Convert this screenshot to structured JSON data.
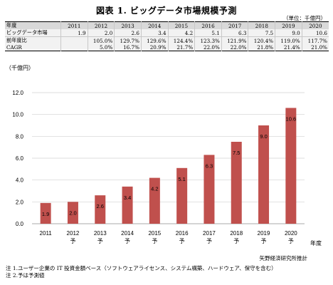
{
  "title": "図表 1. ビッグデータ市場規模予測",
  "unit": "（単位：千億円）",
  "table": {
    "header": [
      "年度",
      "2011",
      "2012",
      "2013",
      "2014",
      "2015",
      "2016",
      "2017",
      "2018",
      "2019",
      "2020"
    ],
    "rows": [
      {
        "label": "ビッグデータ市場",
        "values": [
          "1.9",
          "2.0",
          "2.6",
          "3.4",
          "4.2",
          "5.1",
          "6.3",
          "7.5",
          "9.0",
          "10.6"
        ]
      },
      {
        "label": "前年度比",
        "values": [
          "",
          "105.0%",
          "129.7%",
          "129.6%",
          "124.4%",
          "123.3%",
          "121.9%",
          "120.4%",
          "119.0%",
          "117.7%"
        ]
      },
      {
        "label": "CAGR",
        "values": [
          "",
          "5.0%",
          "16.7%",
          "20.9%",
          "21.7%",
          "22.0%",
          "22.0%",
          "21.8%",
          "21.4%",
          "21.0%"
        ]
      }
    ]
  },
  "chart_data": {
    "type": "bar",
    "categories": [
      "2011",
      "2012",
      "2013",
      "2014",
      "2015",
      "2016",
      "2017",
      "2018",
      "2019",
      "2020"
    ],
    "category_sublabels": [
      "",
      "予",
      "予",
      "予",
      "予",
      "予",
      "予",
      "予",
      "予",
      "予"
    ],
    "values": [
      1.9,
      2.0,
      2.6,
      3.4,
      4.2,
      5.1,
      6.3,
      7.5,
      9.0,
      10.6
    ],
    "data_labels": [
      "1.9",
      "2.0",
      "2.6",
      "3.4",
      "4.2",
      "5.1",
      "6.3",
      "7.5",
      "9.0",
      "10.6"
    ],
    "ylabel": "（千億円）",
    "xlabel": "年度",
    "ylim": [
      0,
      12
    ],
    "yticks": [
      "0.0",
      "2.0",
      "4.0",
      "6.0",
      "8.0",
      "10.0",
      "12.0"
    ],
    "grid": true,
    "bar_color": "#c0504d"
  },
  "source": "矢野経済研究所推計",
  "notes": [
    "注 1.ユーザー企業の IT 投資金額ベース（ソフトウェアライセンス、システム構築、ハードウェア、保守を含む）",
    "注 2.予は予測値"
  ]
}
